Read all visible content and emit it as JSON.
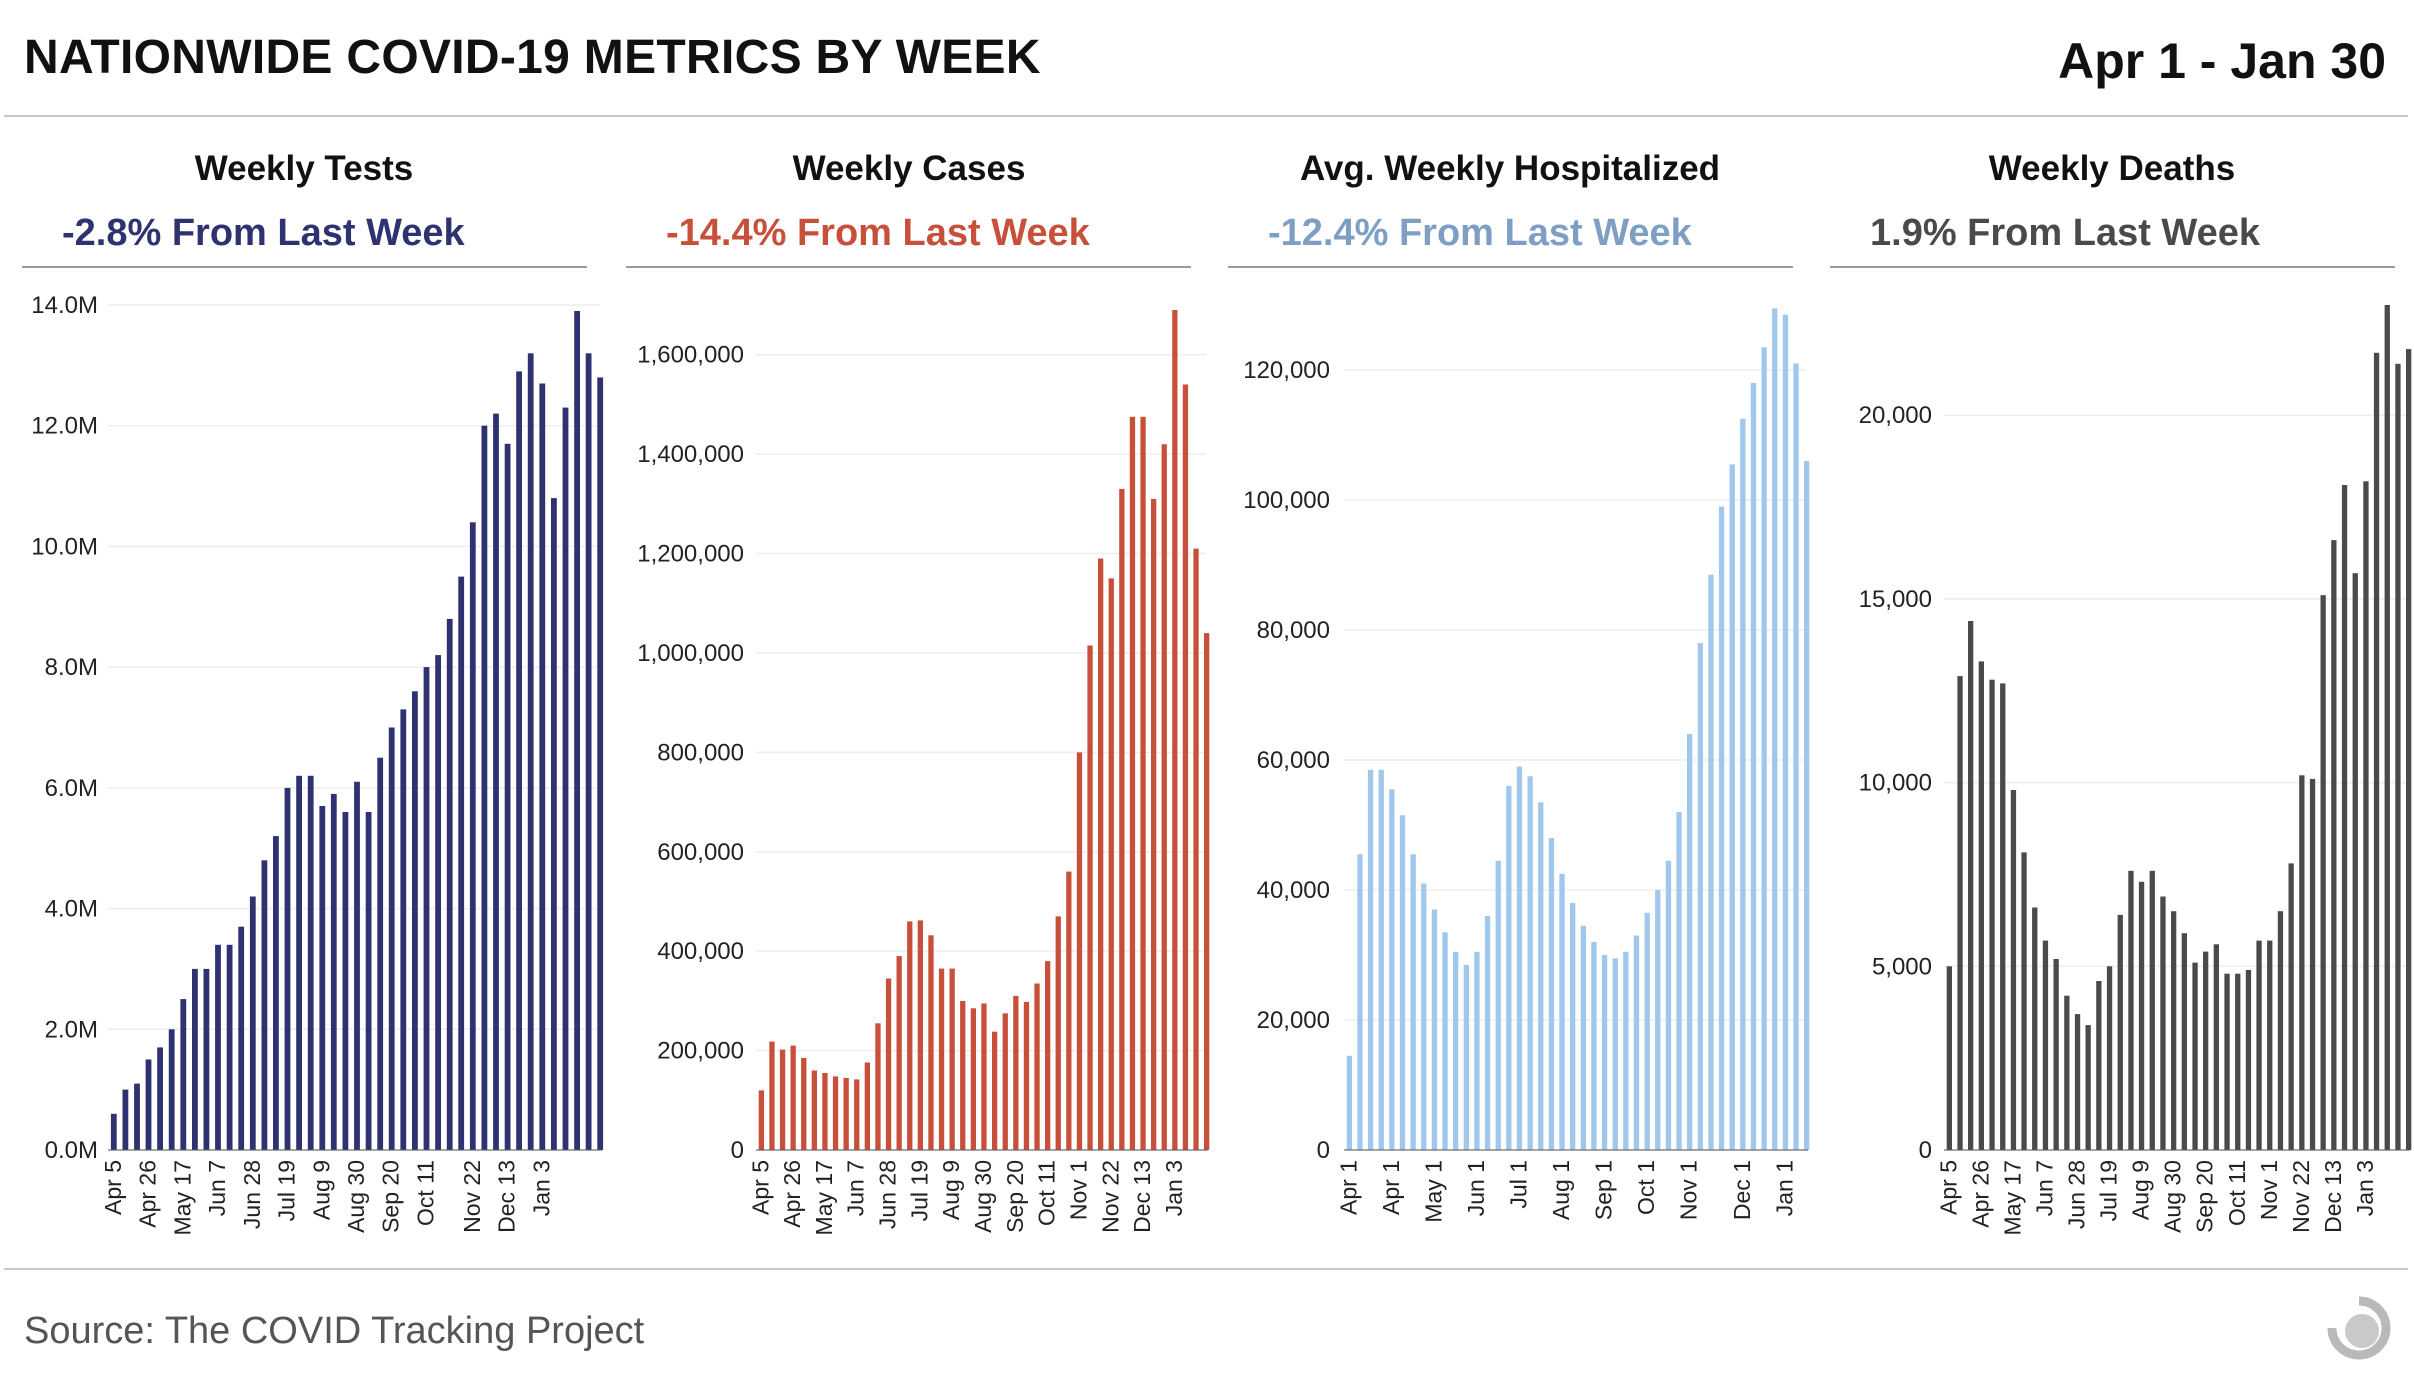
{
  "title": "NATIONWIDE COVID-19 METRICS BY WEEK",
  "date_range": "Apr 1 - Jan 30",
  "source": "Source: The COVID Tracking Project",
  "logo_icon": "covid-tracking-project-logo-icon",
  "chart_data": [
    {
      "type": "bar",
      "title": "Weekly Tests",
      "subtitle": "-2.8% From Last Week",
      "color": "#2f3270",
      "subtitle_color": "#2f3270",
      "ylim": [
        0,
        14000000
      ],
      "yticks": [
        0,
        2000000,
        4000000,
        6000000,
        8000000,
        10000000,
        12000000,
        14000000
      ],
      "ytick_labels": [
        "0.0M",
        "2.0M",
        "4.0M",
        "6.0M",
        "8.0M",
        "10.0M",
        "12.0M",
        "14.0M"
      ],
      "xtick_labels": [
        "Apr 5",
        "Apr 26",
        "May 17",
        "Jun 7",
        "Jun 28",
        "Jul 19",
        "Aug 9",
        "Aug 30",
        "Sep 20",
        "Oct 11",
        "Nov 22",
        "Dec 13",
        "Jan 3"
      ],
      "xtick_indices": [
        0,
        3,
        6,
        9,
        12,
        15,
        18,
        21,
        24,
        27,
        31,
        34,
        37
      ],
      "values": [
        600000,
        1000000,
        1100000,
        1500000,
        1700000,
        2000000,
        2500000,
        3000000,
        3000000,
        3400000,
        3400000,
        3700000,
        4200000,
        4800000,
        5200000,
        6000000,
        6200000,
        6200000,
        5700000,
        5900000,
        5600000,
        6100000,
        5600000,
        6500000,
        7000000,
        7300000,
        7600000,
        8000000,
        8200000,
        8800000,
        9500000,
        10400000,
        12000000,
        12200000,
        11700000,
        12900000,
        13200000,
        12700000,
        10800000,
        12300000,
        13900000,
        13200000,
        12800000
      ]
    },
    {
      "type": "bar",
      "title": "Weekly Cases",
      "subtitle": "-14.4% From Last Week",
      "color": "#c8503a",
      "subtitle_color": "#c8503a",
      "ylim": [
        0,
        1700000
      ],
      "yticks": [
        0,
        200000,
        400000,
        600000,
        800000,
        1000000,
        1200000,
        1400000,
        1600000
      ],
      "ytick_labels": [
        "0",
        "200,000",
        "400,000",
        "600,000",
        "800,000",
        "1,000,000",
        "1,200,000",
        "1,400,000",
        "1,600,000"
      ],
      "xtick_labels": [
        "Apr 5",
        "Apr 26",
        "May 17",
        "Jun 7",
        "Jun 28",
        "Jul 19",
        "Aug 9",
        "Aug 30",
        "Sep 20",
        "Oct 11",
        "Nov 1",
        "Nov 22",
        "Dec 13",
        "Jan 3"
      ],
      "xtick_indices": [
        0,
        3,
        6,
        9,
        12,
        15,
        18,
        21,
        24,
        27,
        30,
        33,
        36,
        39
      ],
      "values": [
        120000,
        218000,
        202000,
        210000,
        185000,
        160000,
        155000,
        148000,
        145000,
        142000,
        176000,
        255000,
        345000,
        390000,
        460000,
        462000,
        432000,
        365000,
        365000,
        300000,
        285000,
        295000,
        238000,
        275000,
        310000,
        298000,
        335000,
        380000,
        470000,
        560000,
        800000,
        1015000,
        1190000,
        1150000,
        1330000,
        1475000,
        1475000,
        1310000,
        1420000,
        1690000,
        1540000,
        1210000,
        1040000
      ]
    },
    {
      "type": "bar",
      "title": "Avg. Weekly Hospitalized",
      "subtitle": "-12.4% From Last Week",
      "color": "#a0c8ec",
      "subtitle_color": "#7d9fc3",
      "ylim": [
        0,
        130000
      ],
      "yticks": [
        0,
        20000,
        40000,
        60000,
        80000,
        100000,
        120000
      ],
      "ytick_labels": [
        "0",
        "20,000",
        "40,000",
        "60,000",
        "80,000",
        "100,000",
        "120,000"
      ],
      "xtick_labels": [
        "Apr 1",
        "Apr 1",
        "May 1",
        "Jun 1",
        "Jul 1",
        "Aug 1",
        "Sep 1",
        "Oct 1",
        "Nov 1",
        "Dec 1",
        "Jan 1"
      ],
      "xtick_indices": [
        0,
        4,
        8,
        12,
        16,
        20,
        24,
        28,
        32,
        37,
        41
      ],
      "values": [
        14500,
        45500,
        58500,
        58500,
        55500,
        51500,
        45500,
        41000,
        37000,
        33500,
        30500,
        28500,
        30500,
        36000,
        44500,
        56000,
        59000,
        57500,
        53500,
        48000,
        42500,
        38000,
        34500,
        32000,
        30000,
        29500,
        30500,
        33000,
        36500,
        40000,
        44500,
        52000,
        64000,
        78000,
        88500,
        99000,
        105500,
        112500,
        118000,
        123500,
        129500,
        128500,
        121000,
        106000
      ]
    },
    {
      "type": "bar",
      "title": "Weekly Deaths",
      "subtitle": "1.9% From Last Week",
      "color": "#4a4a4a",
      "subtitle_color": "#4a4a4a",
      "ylim": [
        0,
        23000
      ],
      "yticks": [
        0,
        5000,
        10000,
        15000,
        20000
      ],
      "ytick_labels": [
        "0",
        "5,000",
        "10,000",
        "15,000",
        "20,000"
      ],
      "xtick_labels": [
        "Apr 5",
        "Apr 26",
        "May 17",
        "Jun 7",
        "Jun 28",
        "Jul 19",
        "Aug 9",
        "Aug 30",
        "Sep 20",
        "Oct 11",
        "Nov 1",
        "Nov 22",
        "Dec 13",
        "Jan 3"
      ],
      "xtick_indices": [
        0,
        3,
        6,
        9,
        12,
        15,
        18,
        21,
        24,
        27,
        30,
        33,
        36,
        39
      ],
      "values": [
        5000,
        12900,
        14400,
        13300,
        12800,
        12700,
        9800,
        8100,
        6600,
        5700,
        5200,
        4200,
        3700,
        3400,
        4600,
        5000,
        6400,
        7600,
        7300,
        7600,
        6900,
        6500,
        5900,
        5100,
        5400,
        5600,
        4800,
        4800,
        4900,
        5700,
        5700,
        6500,
        7800,
        10200,
        10100,
        15100,
        16600,
        18100,
        15700,
        18200,
        21700,
        23000,
        21400,
        21800
      ]
    }
  ]
}
